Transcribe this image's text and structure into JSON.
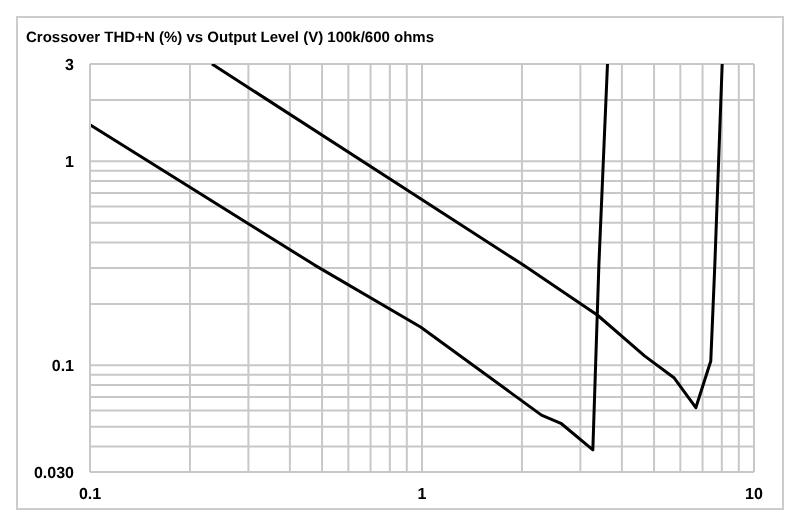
{
  "chart_data": {
    "type": "line",
    "title": "Crossover  THD+N (%) vs Output Level (V)  100k/600 ohms",
    "log": "xy",
    "grid": true,
    "xlim": [
      0.1,
      10
    ],
    "xticks": [
      0.1,
      {
        "value": 0.2,
        "label": null
      },
      {
        "value": 0.3,
        "label": null
      },
      {
        "value": 0.4,
        "label": null
      },
      {
        "value": 0.5,
        "label": null
      },
      {
        "value": 0.6,
        "label": null
      },
      {
        "value": 0.7,
        "label": null
      },
      {
        "value": 0.8,
        "label": null
      },
      {
        "value": 0.9,
        "label": null
      },
      1,
      {
        "value": 2,
        "label": null
      },
      {
        "value": 3,
        "label": null
      },
      {
        "value": 4,
        "label": null
      },
      {
        "value": 5,
        "label": null
      },
      {
        "value": 6,
        "label": null
      },
      {
        "value": 7,
        "label": null
      },
      {
        "value": 8,
        "label": null
      },
      {
        "value": 9,
        "label": null
      },
      10
    ],
    "ylim": [
      0.03,
      3
    ],
    "yticks": [
      {
        "value": 0.03,
        "label": "0.030"
      },
      {
        "value": 0.04,
        "label": null
      },
      {
        "value": 0.05,
        "label": null
      },
      {
        "value": 0.06,
        "label": null
      },
      {
        "value": 0.07,
        "label": null
      },
      {
        "value": 0.08,
        "label": null
      },
      {
        "value": 0.09,
        "label": null
      },
      0.1,
      {
        "value": 0.2,
        "label": null
      },
      {
        "value": 0.3,
        "label": null
      },
      {
        "value": 0.4,
        "label": null
      },
      {
        "value": 0.5,
        "label": null
      },
      {
        "value": 0.6,
        "label": null
      },
      {
        "value": 0.7,
        "label": null
      },
      {
        "value": 0.8,
        "label": null
      },
      {
        "value": 0.9,
        "label": null
      },
      1,
      {
        "value": 2,
        "label": null
      },
      3
    ],
    "series": [
      {
        "color": "#000000",
        "x": [
          0.1,
          0.475,
          0.99,
          2.29,
          2.62,
          3.27,
          3.41,
          3.62
        ],
        "values": [
          1.51,
          0.31,
          0.154,
          0.057,
          0.052,
          0.0385,
          0.31,
          3
        ]
      },
      {
        "color": "#000000",
        "x": [
          0.233,
          2.02,
          3.38,
          4.69,
          5.74,
          6.68,
          7.41,
          7.62,
          8.02
        ],
        "values": [
          3,
          0.31,
          0.176,
          0.111,
          0.087,
          0.062,
          0.105,
          0.31,
          3
        ]
      }
    ]
  }
}
